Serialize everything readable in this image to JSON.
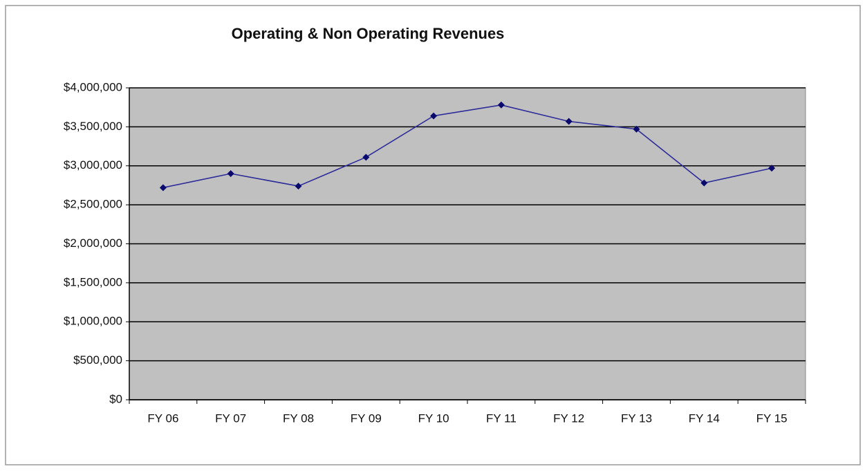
{
  "chart_data": {
    "type": "line",
    "title": "Operating & Non Operating Revenues",
    "categories": [
      "FY 06",
      "FY 07",
      "FY 08",
      "FY 09",
      "FY 10",
      "FY 11",
      "FY 12",
      "FY 13",
      "FY 14",
      "FY 15"
    ],
    "series": [
      {
        "name": "Revenues",
        "color": "#2b2b9a",
        "values": [
          2720000,
          2900000,
          2740000,
          3110000,
          3640000,
          3780000,
          3570000,
          3470000,
          2780000,
          2970000
        ]
      }
    ],
    "ylim": [
      0,
      4000000
    ],
    "yticks": [
      {
        "value": 0,
        "label": "$0"
      },
      {
        "value": 500000,
        "label": "$500,000"
      },
      {
        "value": 1000000,
        "label": "$1,000,000"
      },
      {
        "value": 1500000,
        "label": "$1,500,000"
      },
      {
        "value": 2000000,
        "label": "$2,000,000"
      },
      {
        "value": 2500000,
        "label": "$2,500,000"
      },
      {
        "value": 3000000,
        "label": "$3,000,000"
      },
      {
        "value": 3500000,
        "label": "$3,500,000"
      },
      {
        "value": 4000000,
        "label": "$4,000,000"
      }
    ],
    "grid": true,
    "plot_background": "#c0c0c0"
  }
}
